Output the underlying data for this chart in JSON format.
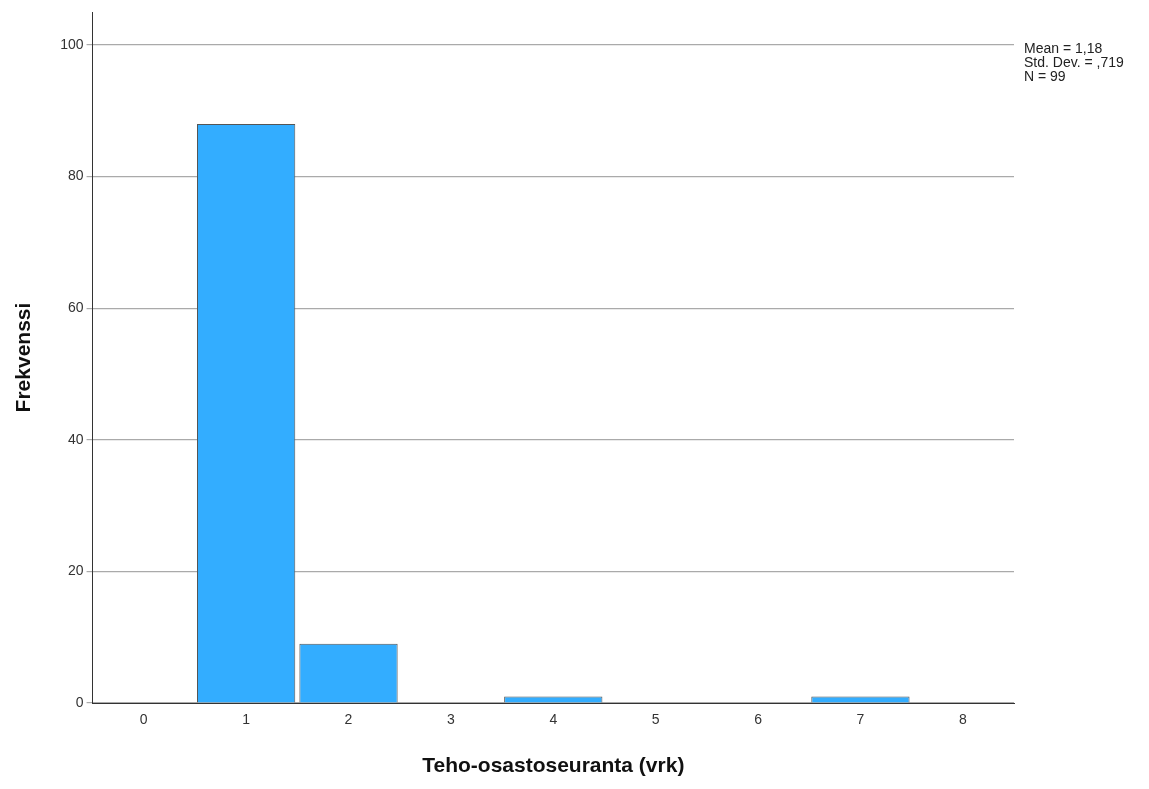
{
  "chart_data": {
    "type": "bar",
    "xlabel": "Teho-osastoseuranta (vrk)",
    "ylabel": "Frekvenssi",
    "categories": [
      "0",
      "1",
      "2",
      "3",
      "4",
      "5",
      "6",
      "7",
      "8"
    ],
    "values": [
      0,
      88,
      9,
      0,
      1,
      0,
      0,
      1,
      0
    ],
    "color": "#33adff",
    "ylim": [
      0,
      105
    ],
    "yticks": [
      0,
      20,
      40,
      60,
      80,
      100
    ],
    "grid": "y",
    "annotations": [
      "Mean = 1,18",
      "Std. Dev. = ,719",
      "N = 99"
    ]
  }
}
